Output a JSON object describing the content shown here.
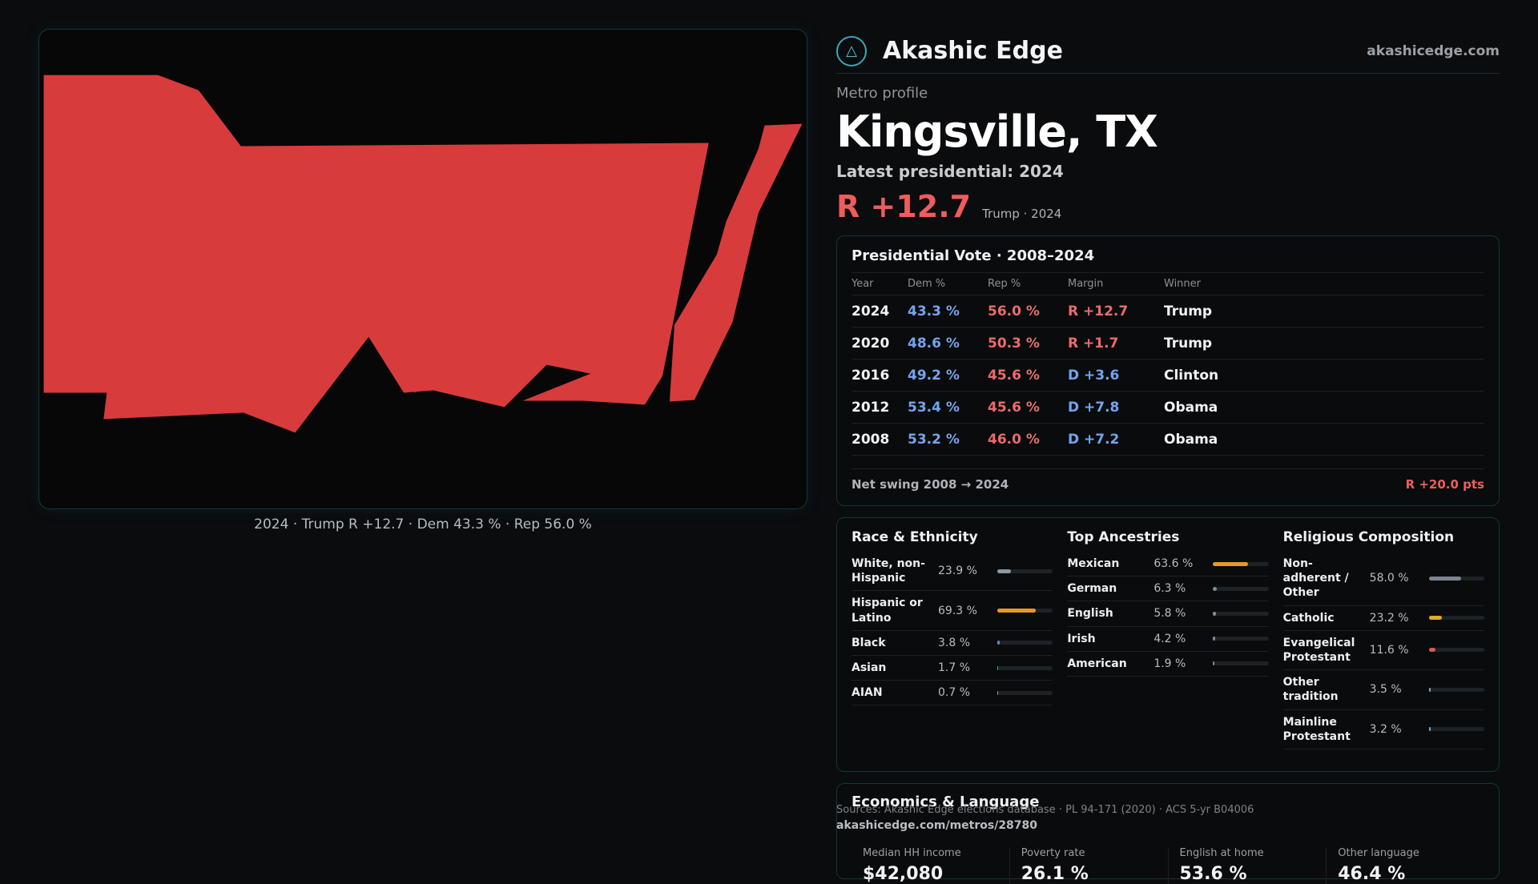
{
  "map": {
    "caption": "2024 · Trump R +12.7 · Dem 43.3 % · Rep 56.0 %",
    "fill_color": "#d83b3b"
  },
  "brand": {
    "icon": "akashic-logo-icon",
    "name": "Akashic Edge",
    "url": "akashicedge.com"
  },
  "profile": {
    "eyebrow": "Metro profile",
    "title": "Kingsville, TX",
    "latest_label": "Latest presidential: 2024",
    "latest_margin": "R +12.7",
    "latest_sub": "Trump · 2024"
  },
  "vote": {
    "title": "Presidential Vote · 2008–2024",
    "headers": [
      "Year",
      "Dem %",
      "Rep %",
      "Margin",
      "Winner"
    ],
    "rows": [
      {
        "year": "2024",
        "dem": "43.3 %",
        "rep": "56.0 %",
        "margin": "R +12.7",
        "winner": "Trump"
      },
      {
        "year": "2020",
        "dem": "48.6 %",
        "rep": "50.3 %",
        "margin": "R +1.7",
        "winner": "Trump"
      },
      {
        "year": "2016",
        "dem": "49.2 %",
        "rep": "45.6 %",
        "margin": "D +3.6",
        "winner": "Clinton"
      },
      {
        "year": "2012",
        "dem": "53.4 %",
        "rep": "45.6 %",
        "margin": "D +7.8",
        "winner": "Obama"
      },
      {
        "year": "2008",
        "dem": "53.2 %",
        "rep": "46.0 %",
        "margin": "D +7.2",
        "winner": "Obama"
      }
    ],
    "swing_label": "Net swing 2008 → 2024",
    "swing_value": "R +20.0 pts"
  },
  "race": {
    "title": "Race & Ethnicity",
    "rows": [
      {
        "label": "White, non-Hispanic",
        "value": "23.9 %",
        "pct": 23.9,
        "color": "#8d98a4"
      },
      {
        "label": "Hispanic or Latino",
        "value": "69.3 %",
        "pct": 69.3,
        "color": "#e39a2b"
      },
      {
        "label": "Black",
        "value": "3.8 %",
        "pct": 3.8,
        "color": "#6b7ec9"
      },
      {
        "label": "Asian",
        "value": "1.7 %",
        "pct": 1.7,
        "color": "#3aa7b3"
      },
      {
        "label": "AIAN",
        "value": "0.7 %",
        "pct": 0.7,
        "color": "#8d98a4"
      }
    ]
  },
  "ancestry": {
    "title": "Top Ancestries",
    "rows": [
      {
        "label": "Mexican",
        "value": "63.6 %",
        "pct": 63.6,
        "color": "#e39a2b"
      },
      {
        "label": "German",
        "value": "6.3 %",
        "pct": 6.3,
        "color": "#7d8a9e"
      },
      {
        "label": "English",
        "value": "5.8 %",
        "pct": 5.8,
        "color": "#7d8a9e"
      },
      {
        "label": "Irish",
        "value": "4.2 %",
        "pct": 4.2,
        "color": "#7d8a9e"
      },
      {
        "label": "American",
        "value": "1.9 %",
        "pct": 1.9,
        "color": "#7d8a9e"
      }
    ]
  },
  "religion": {
    "title": "Religious Composition",
    "rows": [
      {
        "label": "Non-adherent / Other",
        "value": "58.0 %",
        "pct": 58.0,
        "color": "#7d8590"
      },
      {
        "label": "Catholic",
        "value": "23.2 %",
        "pct": 23.2,
        "color": "#e0a82e"
      },
      {
        "label": "Evangelical Protestant",
        "value": "11.6 %",
        "pct": 11.6,
        "color": "#e05555"
      },
      {
        "label": "Other tradition",
        "value": "3.5 %",
        "pct": 3.5,
        "color": "#9aa0a6"
      },
      {
        "label": "Mainline Protestant",
        "value": "3.2 %",
        "pct": 3.2,
        "color": "#6fa6f2"
      }
    ]
  },
  "economics": {
    "title": "Economics & Language",
    "items": [
      {
        "label": "Median HH income",
        "value": "$42,080"
      },
      {
        "label": "Poverty rate",
        "value": "26.1 %"
      },
      {
        "label": "English at home",
        "value": "53.6 %"
      },
      {
        "label": "Other language",
        "value": "46.4 %"
      }
    ]
  },
  "footer": {
    "sources": "Sources: Akashic Edge elections database · PL 94-171 (2020) · ACS 5-yr B04006",
    "link": "akashicedge.com/metros/28780"
  }
}
